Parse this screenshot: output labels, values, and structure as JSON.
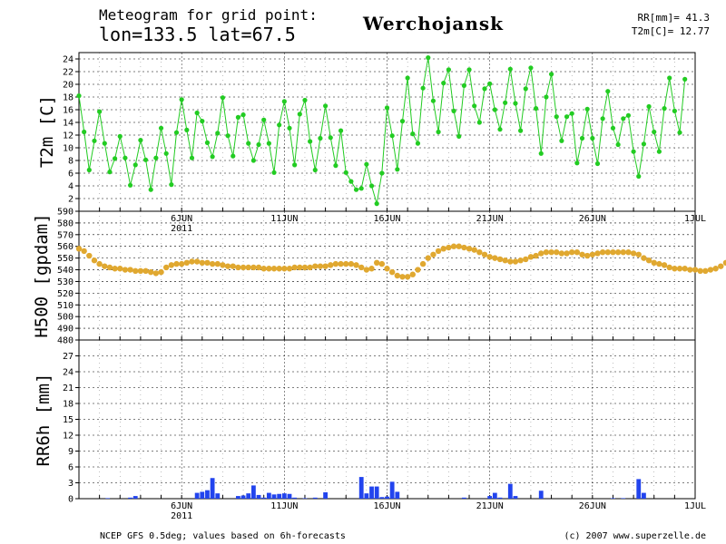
{
  "header": {
    "line1": "Meteogram for grid point:",
    "line2": "lon=133.5  lat=67.5",
    "location": "Werchojansk",
    "rr_total": "RR[mm]= 41.3",
    "t2m_mean": "T2m[C]= 12.77"
  },
  "footer": {
    "source": "NCEP GFS 0.5deg; values based on 6h-forecasts",
    "copyright": "(c) 2007 www.superzelle.de"
  },
  "colors": {
    "t2m": "#22cc22",
    "h500": "#e0a830",
    "rr6h": "#2244ee",
    "grid": "#000000"
  },
  "chart_data": [
    {
      "type": "line",
      "ylabel": "T2m [C]",
      "ylim": [
        0,
        25
      ],
      "yticks": [
        "2",
        "4",
        "6",
        "8",
        "10",
        "12",
        "14",
        "16",
        "18",
        "20",
        "22",
        "24"
      ],
      "grid": "dashed",
      "x_start_day": 1,
      "x_days_span": 30,
      "x_ticks": [
        {
          "label": "6JUN",
          "day": 6,
          "year": "2011"
        },
        {
          "label": "11JUN",
          "day": 11
        },
        {
          "label": "16JUN",
          "day": 16
        },
        {
          "label": "21JUN",
          "day": 21
        },
        {
          "label": "26JUN",
          "day": 26
        },
        {
          "label": "1JUL",
          "day": 31
        }
      ],
      "series": [
        {
          "step_hours": 6,
          "values": [
            18.2,
            12.5,
            6.5,
            11.1,
            15.7,
            10.7,
            6.2,
            8.3,
            11.8,
            8.4,
            4.1,
            7.3,
            11.2,
            8.1,
            3.4,
            8.4,
            13.1,
            9.1,
            4.2,
            12.4,
            17.6,
            12.8,
            8.4,
            15.5,
            14.2,
            10.8,
            8.6,
            12.3,
            17.9,
            11.9,
            8.7,
            14.8,
            15.2,
            10.7,
            8.0,
            10.5,
            14.4,
            10.7,
            6.1,
            13.6,
            17.3,
            13.1,
            7.3,
            15.3,
            17.5,
            11.0,
            6.5,
            11.5,
            16.6,
            11.6,
            7.2,
            12.7,
            6.1,
            4.7,
            3.4,
            3.6,
            7.4,
            4.0,
            1.2,
            6.0,
            16.3,
            11.9,
            6.6,
            14.2,
            21.0,
            12.2,
            10.7,
            19.4,
            24.2,
            17.4,
            12.5,
            20.2,
            22.3,
            15.8,
            11.8,
            19.8,
            22.3,
            16.6,
            14.0,
            19.3,
            20.1,
            16.0,
            12.9,
            17.1,
            22.4,
            17.0,
            12.7,
            19.3,
            22.6,
            16.2,
            9.1,
            18.0,
            21.6,
            14.9,
            11.1,
            14.9,
            15.4,
            7.6,
            11.5,
            16.1,
            11.5,
            7.5,
            14.6,
            18.9,
            13.1,
            10.5,
            14.6,
            15.1,
            9.4,
            5.5,
            10.6,
            16.5,
            12.5,
            9.4,
            16.2,
            21.0,
            15.8,
            12.4,
            20.8
          ]
        }
      ]
    },
    {
      "type": "line",
      "ylabel": "H500 [gpdam]",
      "ylim": [
        480,
        590
      ],
      "yticks": [
        "480",
        "490",
        "500",
        "510",
        "520",
        "530",
        "540",
        "550",
        "560",
        "570",
        "580",
        "590"
      ],
      "grid": "dashed",
      "x_start_day": 1,
      "x_days_span": 30,
      "series": [
        {
          "step_hours": 6,
          "values": [
            558,
            556,
            552,
            548,
            545,
            543,
            542,
            541,
            541,
            540,
            540,
            539,
            539,
            539,
            538,
            537,
            538,
            542,
            544,
            545,
            545,
            546,
            547,
            547,
            546,
            546,
            545,
            545,
            544,
            543,
            543,
            542,
            542,
            542,
            542,
            542,
            541,
            541,
            541,
            541,
            541,
            541,
            542,
            542,
            542,
            542,
            543,
            543,
            543,
            544,
            545,
            545,
            545,
            545,
            544,
            542,
            540,
            541,
            546,
            545,
            541,
            538,
            535,
            534,
            534,
            536,
            540,
            545,
            550,
            553,
            556,
            558,
            559,
            560,
            560,
            559,
            558,
            557,
            555,
            553,
            551,
            550,
            549,
            548,
            547,
            547,
            548,
            549,
            551,
            552,
            554,
            555,
            555,
            555,
            554,
            554,
            555,
            555,
            553,
            552,
            553,
            554,
            555,
            555,
            555,
            555,
            555,
            555,
            554,
            553,
            550,
            548,
            546,
            545,
            544,
            542,
            541,
            541,
            541,
            540,
            540,
            539,
            539,
            540,
            541,
            543,
            546,
            549,
            552,
            553,
            553,
            554,
            555
          ]
        }
      ]
    },
    {
      "type": "bar",
      "ylabel": "RR6h [mm]",
      "ylim": [
        0,
        30
      ],
      "yticks": [
        "0",
        "3",
        "6",
        "9",
        "12",
        "15",
        "18",
        "21",
        "24",
        "27"
      ],
      "grid": "dashed",
      "x_start_day": 1,
      "x_days_span": 30,
      "x_ticks": [
        {
          "label": "6JUN",
          "day": 6,
          "year": "2011"
        },
        {
          "label": "11JUN",
          "day": 11
        },
        {
          "label": "16JUN",
          "day": 16
        },
        {
          "label": "21JUN",
          "day": 21
        },
        {
          "label": "26JUN",
          "day": 26
        },
        {
          "label": "1JUL",
          "day": 31
        }
      ],
      "bars": [
        {
          "day": 2.4,
          "value": 0.1
        },
        {
          "day": 3.5,
          "value": 0.2
        },
        {
          "day": 3.75,
          "value": 0.5
        },
        {
          "day": 6.75,
          "value": 1.1
        },
        {
          "day": 7.0,
          "value": 1.3
        },
        {
          "day": 7.25,
          "value": 1.6
        },
        {
          "day": 7.5,
          "value": 3.9
        },
        {
          "day": 7.75,
          "value": 1.0
        },
        {
          "day": 8.75,
          "value": 0.5
        },
        {
          "day": 9.0,
          "value": 0.6
        },
        {
          "day": 9.25,
          "value": 1.0
        },
        {
          "day": 9.5,
          "value": 2.5
        },
        {
          "day": 9.75,
          "value": 0.7
        },
        {
          "day": 10.0,
          "value": 0.2
        },
        {
          "day": 10.25,
          "value": 1.1
        },
        {
          "day": 10.5,
          "value": 0.8
        },
        {
          "day": 10.75,
          "value": 0.9
        },
        {
          "day": 11.0,
          "value": 1.0
        },
        {
          "day": 11.25,
          "value": 0.9
        },
        {
          "day": 11.5,
          "value": 0.2
        },
        {
          "day": 12.0,
          "value": 0.1
        },
        {
          "day": 12.5,
          "value": 0.2
        },
        {
          "day": 13.0,
          "value": 1.2
        },
        {
          "day": 14.75,
          "value": 4.1
        },
        {
          "day": 15.0,
          "value": 1.0
        },
        {
          "day": 15.25,
          "value": 2.3
        },
        {
          "day": 15.5,
          "value": 2.3
        },
        {
          "day": 15.75,
          "value": 0.3
        },
        {
          "day": 16.0,
          "value": 0.4
        },
        {
          "day": 16.25,
          "value": 3.2
        },
        {
          "day": 16.5,
          "value": 1.3
        },
        {
          "day": 19.75,
          "value": 0.2
        },
        {
          "day": 21.0,
          "value": 0.5
        },
        {
          "day": 21.25,
          "value": 1.1
        },
        {
          "day": 21.5,
          "value": 0.2
        },
        {
          "day": 22.0,
          "value": 2.8
        },
        {
          "day": 22.25,
          "value": 0.5
        },
        {
          "day": 23.5,
          "value": 1.5
        },
        {
          "day": 27.0,
          "value": 0.1
        },
        {
          "day": 27.5,
          "value": 0.1
        },
        {
          "day": 28.25,
          "value": 3.7
        },
        {
          "day": 28.5,
          "value": 1.1
        }
      ]
    }
  ]
}
